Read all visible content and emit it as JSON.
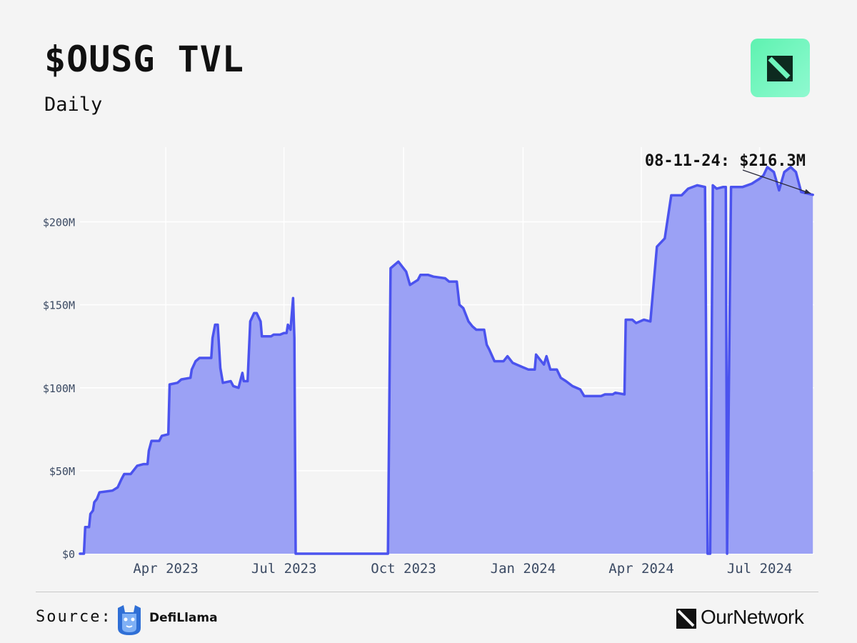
{
  "header": {
    "title": "$OUSG TVL",
    "subtitle": "Daily",
    "logo_icon": "ournetwork-corner-logo-icon"
  },
  "colors": {
    "background": "#f4f4f4",
    "line": "#4b53ee",
    "fill": "#9ba1f5",
    "grid": "#ffffff",
    "badge": "#6ff5bd"
  },
  "chart_data": {
    "type": "area",
    "title": "$OUSG TVL",
    "subtitle": "Daily",
    "xlabel": "",
    "ylabel": "",
    "ylim": [
      0,
      245
    ],
    "y_unit": "millions USD",
    "y_ticks": [
      0,
      50,
      100,
      150,
      200
    ],
    "y_tick_labels": [
      "$0",
      "$50M",
      "$100M",
      "$150M",
      "$200M"
    ],
    "x_ticks": [
      "2023-04-01",
      "2023-07-01",
      "2023-10-01",
      "2024-01-01",
      "2024-04-01",
      "2024-07-01"
    ],
    "x_tick_labels": [
      "Apr 2023",
      "Jul 2023",
      "Oct 2023",
      "Jan 2024",
      "Apr 2024",
      "Jul 2024"
    ],
    "grid": true,
    "annotation": {
      "text": "08-11-24: $216.3M",
      "x": "2024-08-11",
      "y": 216.3
    },
    "series": [
      {
        "points": [
          [
            "2023-01-25",
            0
          ],
          [
            "2023-01-28",
            0
          ],
          [
            "2023-01-29",
            16
          ],
          [
            "2023-02-01",
            16
          ],
          [
            "2023-02-02",
            24
          ],
          [
            "2023-02-04",
            26
          ],
          [
            "2023-02-05",
            31
          ],
          [
            "2023-02-07",
            33
          ],
          [
            "2023-02-09",
            37
          ],
          [
            "2023-02-19",
            38
          ],
          [
            "2023-02-23",
            40
          ],
          [
            "2023-02-26",
            45
          ],
          [
            "2023-02-28",
            48
          ],
          [
            "2023-03-05",
            48
          ],
          [
            "2023-03-07",
            50
          ],
          [
            "2023-03-10",
            53
          ],
          [
            "2023-03-15",
            54
          ],
          [
            "2023-03-18",
            54
          ],
          [
            "2023-03-19",
            62
          ],
          [
            "2023-03-21",
            68
          ],
          [
            "2023-03-27",
            68
          ],
          [
            "2023-03-29",
            71
          ],
          [
            "2023-04-03",
            72
          ],
          [
            "2023-04-04",
            102
          ],
          [
            "2023-04-10",
            103
          ],
          [
            "2023-04-13",
            105
          ],
          [
            "2023-04-20",
            106
          ],
          [
            "2023-04-21",
            111
          ],
          [
            "2023-04-24",
            116
          ],
          [
            "2023-04-27",
            118
          ],
          [
            "2023-05-06",
            118
          ],
          [
            "2023-05-07",
            130
          ],
          [
            "2023-05-09",
            138
          ],
          [
            "2023-05-11",
            138
          ],
          [
            "2023-05-13",
            112
          ],
          [
            "2023-05-15",
            103
          ],
          [
            "2023-05-21",
            104
          ],
          [
            "2023-05-23",
            101
          ],
          [
            "2023-05-27",
            100
          ],
          [
            "2023-05-29",
            106
          ],
          [
            "2023-05-30",
            109
          ],
          [
            "2023-05-31",
            104
          ],
          [
            "2023-06-03",
            104
          ],
          [
            "2023-06-05",
            140
          ],
          [
            "2023-06-08",
            145
          ],
          [
            "2023-06-10",
            145
          ],
          [
            "2023-06-13",
            140
          ],
          [
            "2023-06-14",
            131
          ],
          [
            "2023-06-21",
            131
          ],
          [
            "2023-06-23",
            132
          ],
          [
            "2023-06-28",
            132
          ],
          [
            "2023-07-01",
            133
          ],
          [
            "2023-07-03",
            133
          ],
          [
            "2023-07-04",
            138
          ],
          [
            "2023-07-06",
            135
          ],
          [
            "2023-07-08",
            154
          ],
          [
            "2023-07-09",
            130
          ],
          [
            "2023-07-10",
            0
          ],
          [
            "2023-09-19",
            0
          ],
          [
            "2023-09-21",
            172
          ],
          [
            "2023-09-27",
            176
          ],
          [
            "2023-09-30",
            173
          ],
          [
            "2023-10-03",
            170
          ],
          [
            "2023-10-06",
            162
          ],
          [
            "2023-10-12",
            165
          ],
          [
            "2023-10-14",
            168
          ],
          [
            "2023-10-20",
            168
          ],
          [
            "2023-10-24",
            167
          ],
          [
            "2023-11-02",
            166
          ],
          [
            "2023-11-05",
            164
          ],
          [
            "2023-11-11",
            164
          ],
          [
            "2023-11-13",
            150
          ],
          [
            "2023-11-16",
            148
          ],
          [
            "2023-11-20",
            140
          ],
          [
            "2023-11-23",
            137
          ],
          [
            "2023-11-26",
            135
          ],
          [
            "2023-12-02",
            135
          ],
          [
            "2023-12-04",
            126
          ],
          [
            "2023-12-06",
            123
          ],
          [
            "2023-12-10",
            116
          ],
          [
            "2023-12-17",
            116
          ],
          [
            "2023-12-20",
            119
          ],
          [
            "2023-12-24",
            115
          ],
          [
            "2023-12-30",
            113
          ],
          [
            "2024-01-05",
            111
          ],
          [
            "2024-01-10",
            111
          ],
          [
            "2024-01-11",
            120
          ],
          [
            "2024-01-14",
            117
          ],
          [
            "2024-01-17",
            114
          ],
          [
            "2024-01-19",
            119
          ],
          [
            "2024-01-22",
            111
          ],
          [
            "2024-01-27",
            111
          ],
          [
            "2024-01-30",
            106
          ],
          [
            "2024-02-03",
            104
          ],
          [
            "2024-02-08",
            101
          ],
          [
            "2024-02-14",
            99
          ],
          [
            "2024-02-17",
            95
          ],
          [
            "2024-03-01",
            95
          ],
          [
            "2024-03-04",
            96
          ],
          [
            "2024-03-10",
            96
          ],
          [
            "2024-03-12",
            97
          ],
          [
            "2024-03-19",
            96
          ],
          [
            "2024-03-20",
            141
          ],
          [
            "2024-03-25",
            141
          ],
          [
            "2024-03-28",
            139
          ],
          [
            "2024-04-03",
            141
          ],
          [
            "2024-04-08",
            140
          ],
          [
            "2024-04-13",
            185
          ],
          [
            "2024-04-19",
            190
          ],
          [
            "2024-04-24",
            216
          ],
          [
            "2024-05-02",
            216
          ],
          [
            "2024-05-07",
            220
          ],
          [
            "2024-05-14",
            222
          ],
          [
            "2024-05-20",
            221
          ],
          [
            "2024-05-22",
            0
          ],
          [
            "2024-05-24",
            0
          ],
          [
            "2024-05-26",
            222
          ],
          [
            "2024-05-29",
            220
          ],
          [
            "2024-06-03",
            221
          ],
          [
            "2024-06-05",
            221
          ],
          [
            "2024-06-06",
            0
          ],
          [
            "2024-06-09",
            221
          ],
          [
            "2024-06-18",
            221
          ],
          [
            "2024-06-25",
            223
          ],
          [
            "2024-07-01",
            226
          ],
          [
            "2024-07-04",
            228
          ],
          [
            "2024-07-07",
            233
          ],
          [
            "2024-07-12",
            230
          ],
          [
            "2024-07-16",
            219
          ],
          [
            "2024-07-20",
            230
          ],
          [
            "2024-07-25",
            233
          ],
          [
            "2024-07-29",
            230
          ],
          [
            "2024-08-02",
            218
          ],
          [
            "2024-08-11",
            216.3
          ]
        ]
      }
    ]
  },
  "footer": {
    "source_label": "Source:",
    "source_name": "DefiLlama",
    "source_icon": "defillama-llama-icon",
    "brand_name": "OurNetwork",
    "brand_icon": "ournetwork-logo-icon"
  }
}
